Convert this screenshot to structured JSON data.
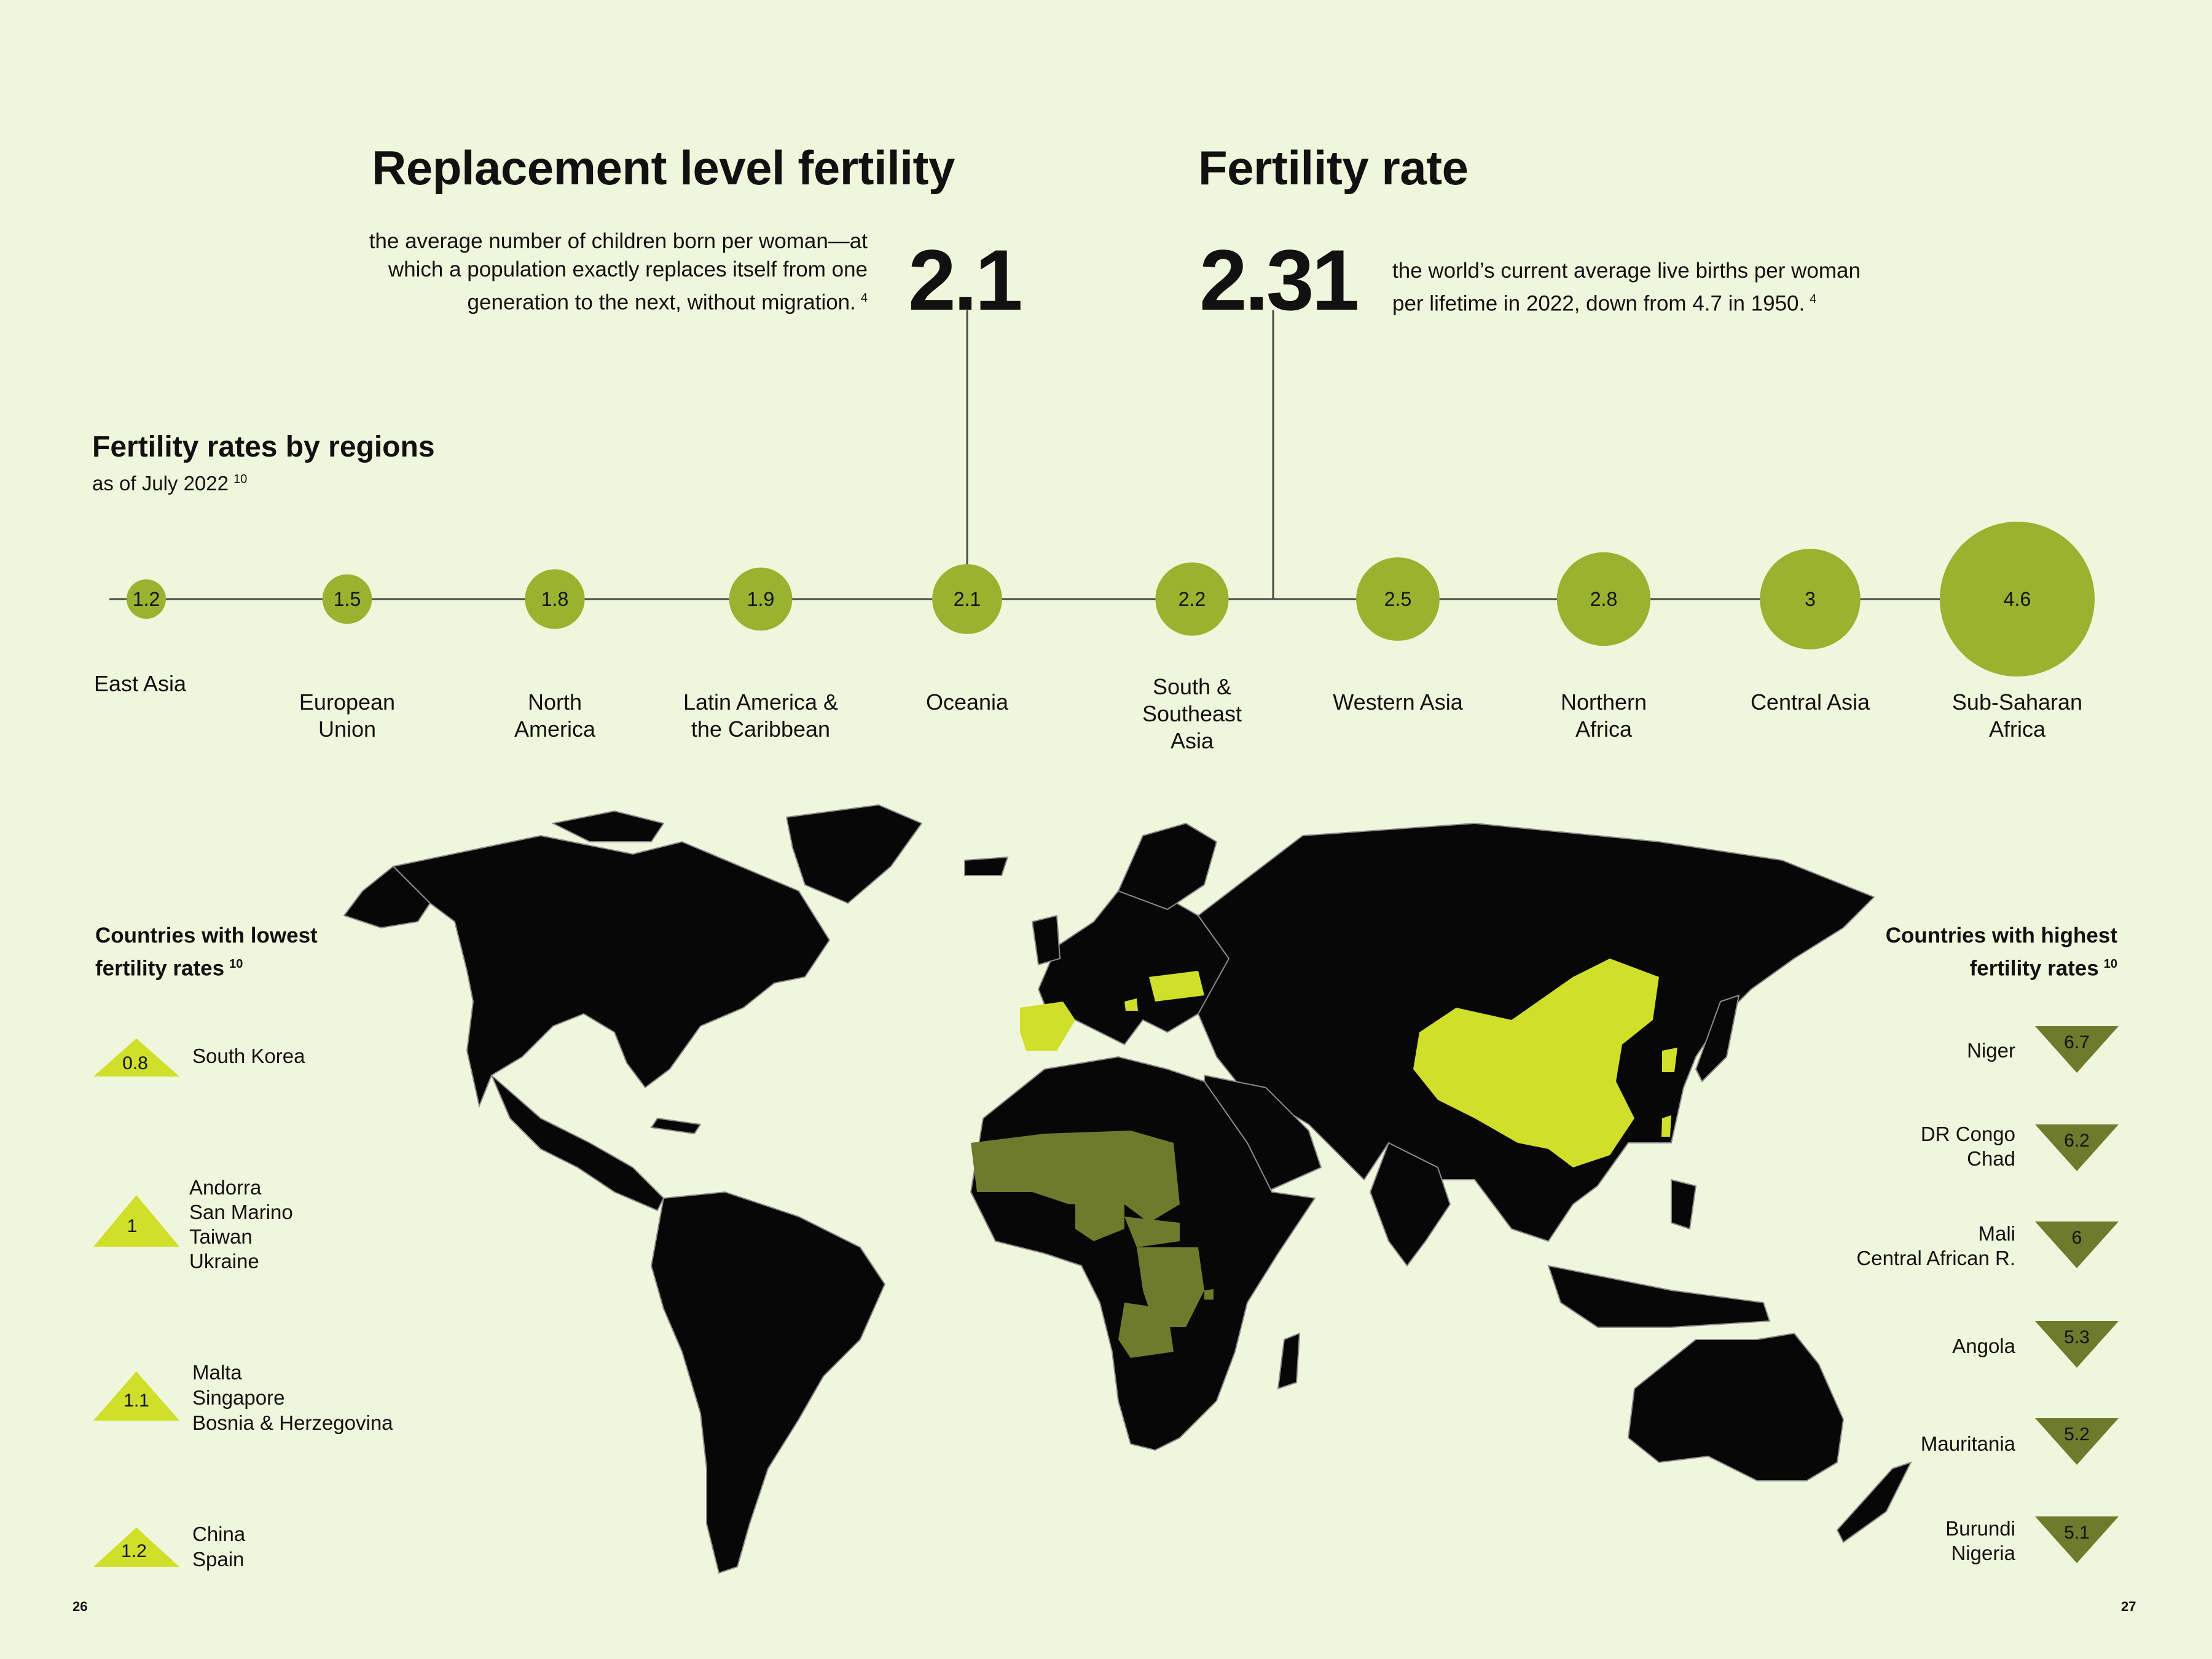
{
  "replacement": {
    "title": "Replacement level fertility",
    "value": "2.1",
    "desc_lines": [
      "the average number of children born per woman—at",
      "which a population exactly replaces itself from one",
      "generation to the next, without migration."
    ],
    "ref": "4"
  },
  "fertility": {
    "title": "Fertility rate",
    "value": "2.31",
    "desc_lines": [
      "the world’s current average live births per woman",
      "per lifetime in 2022, down from 4.7 in 1950."
    ],
    "ref": "4"
  },
  "regions": {
    "title": "Fertility rates by regions",
    "subtitle": "as of July 2022",
    "ref": "10"
  },
  "chart_data": {
    "type": "bubble",
    "title": "Fertility rates by regions",
    "subtitle": "as of July 2022",
    "categories": [
      "East Asia",
      "European Union",
      "North America",
      "Latin America & the Caribbean",
      "Oceania",
      "South & Southeast Asia",
      "Western Asia",
      "Northern Africa",
      "Central Asia",
      "Sub-Saharan Africa"
    ],
    "category_lines": [
      [
        "East Asia"
      ],
      [
        "European",
        "Union"
      ],
      [
        "North",
        "America"
      ],
      [
        "Latin America &",
        "the Caribbean"
      ],
      [
        "Oceania"
      ],
      [
        "South &",
        "Southeast",
        "Asia"
      ],
      [
        "Western Asia"
      ],
      [
        "Northern",
        "Africa"
      ],
      [
        "Central Asia"
      ],
      [
        "Sub-Saharan",
        "Africa"
      ]
    ],
    "values": [
      1.2,
      1.5,
      1.8,
      1.9,
      2.1,
      2.2,
      2.5,
      2.8,
      3,
      4.6
    ],
    "value_labels": [
      "1.2",
      "1.5",
      "1.8",
      "1.9",
      "2.1",
      "2.2",
      "2.5",
      "2.8",
      "3",
      "4.6"
    ],
    "reference_lines": [
      {
        "value": 2.1
      },
      {
        "value": 2.31
      }
    ]
  },
  "lowest": {
    "title_lines": [
      "Countries with lowest",
      "fertility rates"
    ],
    "ref": "10",
    "items": [
      {
        "value": "0.8",
        "countries": [
          "South Korea"
        ]
      },
      {
        "value": "1",
        "countries": [
          "Andorra",
          "San Marino",
          "Taiwan",
          "Ukraine"
        ]
      },
      {
        "value": "1.1",
        "countries": [
          "Malta",
          "Singapore",
          "Bosnia & Herzegovina"
        ]
      },
      {
        "value": "1.2",
        "countries": [
          "China",
          "Spain"
        ]
      }
    ]
  },
  "highest": {
    "title_lines": [
      "Countries with highest",
      "fertility rates"
    ],
    "ref": "10",
    "items": [
      {
        "value": "6.7",
        "countries": [
          "Niger"
        ]
      },
      {
        "value": "6.2",
        "countries": [
          "DR Congo",
          "Chad"
        ]
      },
      {
        "value": "6",
        "countries": [
          "Mali",
          "Central African R."
        ]
      },
      {
        "value": "5.3",
        "countries": [
          "Angola"
        ]
      },
      {
        "value": "5.2",
        "countries": [
          "Mauritania"
        ]
      },
      {
        "value": "5.1",
        "countries": [
          "Burundi",
          "Nigeria"
        ]
      }
    ]
  },
  "pages": {
    "left": "26",
    "right": "27"
  },
  "colors": {
    "background": "#f0f6dc",
    "bubble": "#9ab22f",
    "low_highlight": "#cfdf2a",
    "high_highlight": "#6e7a2c",
    "land": "#070707",
    "line": "#4a4a4a"
  }
}
